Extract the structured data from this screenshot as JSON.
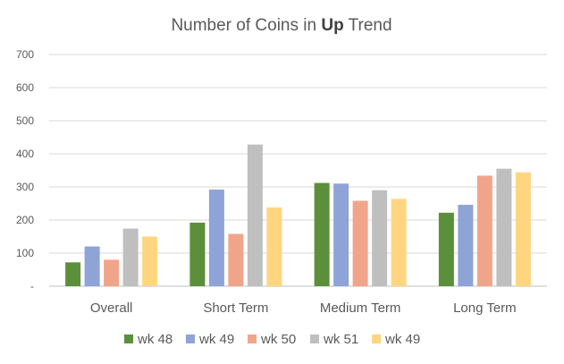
{
  "chart_data": {
    "type": "bar",
    "title_parts": [
      {
        "text": "Number of Coins in ",
        "bold": false
      },
      {
        "text": "Up",
        "bold": true
      },
      {
        "text": " Trend",
        "bold": false
      }
    ],
    "categories": [
      "Overall",
      "Short Term",
      "Medium Term",
      "Long Term"
    ],
    "series": [
      {
        "name": "wk 48",
        "color": "#5b8f3a",
        "values": [
          72,
          192,
          312,
          222
        ]
      },
      {
        "name": "wk 49",
        "color": "#8ea3d6",
        "values": [
          120,
          292,
          310,
          246
        ]
      },
      {
        "name": "wk 50",
        "color": "#f0a58a",
        "values": [
          80,
          158,
          258,
          334
        ]
      },
      {
        "name": "wk 51",
        "color": "#bfbfbf",
        "values": [
          174,
          428,
          290,
          355
        ]
      },
      {
        "name": "wk 49",
        "color": "#ffd580",
        "values": [
          150,
          238,
          264,
          344
        ]
      }
    ],
    "yticks": [
      "-",
      "100",
      "200",
      "300",
      "400",
      "500",
      "600",
      "700"
    ],
    "ylim": [
      0,
      700
    ],
    "grid": true,
    "legend": "bottom",
    "xlabel": "",
    "ylabel": ""
  }
}
